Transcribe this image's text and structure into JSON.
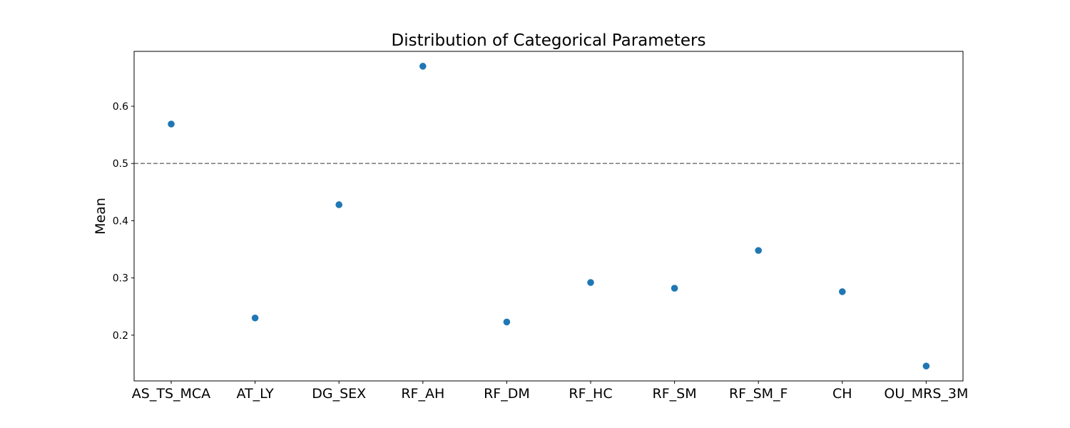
{
  "chart_data": {
    "type": "scatter",
    "title": "Distribution of Categorical Parameters",
    "xlabel": "",
    "ylabel": "Mean",
    "categories": [
      "AS_TS_MCA",
      "AT_LY",
      "DG_SEX",
      "RF_AH",
      "RF_DM",
      "RF_HC",
      "RF_SM",
      "RF_SM_F",
      "CH",
      "OU_MRS_3M"
    ],
    "values": [
      0.569,
      0.23,
      0.428,
      0.67,
      0.223,
      0.292,
      0.282,
      0.348,
      0.276,
      0.146
    ],
    "ylim": [
      0.12,
      0.696
    ],
    "yticks": [
      0.2,
      0.3,
      0.4,
      0.5,
      0.6
    ],
    "ytick_labels": [
      "0.2",
      "0.3",
      "0.4",
      "0.5",
      "0.6"
    ],
    "reference_line": {
      "y": 0.5,
      "style": "dashed",
      "color": "#808080"
    },
    "marker_color": "#1f77b4",
    "grid": false,
    "legend": "none"
  }
}
